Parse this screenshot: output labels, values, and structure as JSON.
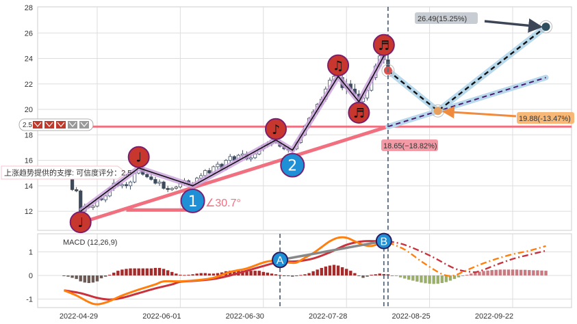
{
  "colors": {
    "up_candle": "#ffffff",
    "candle_edge": "#3d4a5c",
    "down_candle": "#3d4a5c",
    "zigzag": "#111111",
    "zigzag_halo": "#c9a0dc",
    "pivot_marker": "#c8372d",
    "pivot_edge": "#7a1f6e",
    "support_marker": "#1f8fd6",
    "support_line": "#f07080",
    "projection_halo": "#b8d8ec",
    "dif": "#ff7f0e",
    "dea": "#c8323c",
    "hist_pos": "#a52a2a",
    "hist_neg": "#6d5a55",
    "hist_proj_neg": "#9ab06a",
    "hist_proj_pos": "#c97a80",
    "gray_link": "#888888",
    "vline": "#5a6a7a"
  },
  "legend": {
    "score": "2.5",
    "icons": [
      "red",
      "red",
      "red",
      "gray",
      "gray"
    ]
  },
  "support_label": "上涨趋势提供的支撑: 可信度评分：2.5",
  "angle_label": "∠30.7°",
  "annotations": {
    "target_up": "26.49(15.25%)",
    "target_mid": "19.88(-13.47%)",
    "support_level": "18.65(−18.82%)"
  },
  "chart_data": [
    {
      "type": "candlestick",
      "ylim": [
        11,
        28
      ],
      "yticks": [
        12,
        14,
        16,
        18,
        20,
        22,
        24,
        26,
        28
      ],
      "grid": true,
      "xticks": [
        "2022-04-29",
        "2022-06-01",
        "2022-06-30",
        "2022-07-28",
        "2022-08-25",
        "2022-09-22"
      ],
      "dates": [
        "2022-04-19",
        "2022-04-20",
        "2022-04-21",
        "2022-04-22",
        "2022-04-25",
        "2022-04-26",
        "2022-04-27",
        "2022-04-28",
        "2022-04-29",
        "2022-05-05",
        "2022-05-06",
        "2022-05-09",
        "2022-05-10",
        "2022-05-11",
        "2022-05-12",
        "2022-05-13",
        "2022-05-16",
        "2022-05-17",
        "2022-05-18",
        "2022-05-19",
        "2022-05-20",
        "2022-05-23",
        "2022-05-24",
        "2022-05-25",
        "2022-05-26",
        "2022-05-27",
        "2022-05-30",
        "2022-05-31",
        "2022-06-01",
        "2022-06-02",
        "2022-06-06",
        "2022-06-07",
        "2022-06-08",
        "2022-06-09",
        "2022-06-10",
        "2022-06-13",
        "2022-06-14",
        "2022-06-15",
        "2022-06-16",
        "2022-06-17",
        "2022-06-20",
        "2022-06-21",
        "2022-06-22",
        "2022-06-23",
        "2022-06-24",
        "2022-06-27",
        "2022-06-28",
        "2022-06-29",
        "2022-06-30",
        "2022-07-01",
        "2022-07-04",
        "2022-07-05",
        "2022-07-06",
        "2022-07-07",
        "2022-07-08",
        "2022-07-11",
        "2022-07-12",
        "2022-07-13",
        "2022-07-14",
        "2022-07-15",
        "2022-07-18",
        "2022-07-19",
        "2022-07-20",
        "2022-07-21",
        "2022-07-22",
        "2022-07-25",
        "2022-07-26",
        "2022-07-27",
        "2022-07-28",
        "2022-07-29",
        "2022-08-01",
        "2022-08-02",
        "2022-08-03",
        "2022-08-04",
        "2022-08-05",
        "2022-08-08",
        "2022-08-09",
        "2022-08-10",
        "2022-08-11",
        "2022-08-12",
        "2022-08-15",
        "2022-08-16",
        "2022-08-17",
        "2022-08-18",
        "2022-08-19",
        "2022-08-22",
        "2022-08-23",
        "2022-08-24",
        "2022-08-25",
        "2022-08-26",
        "2022-08-29",
        "2022-08-30",
        "2022-08-31",
        "2022-09-01",
        "2022-09-02",
        "2022-09-05",
        "2022-09-06",
        "2022-09-07",
        "2022-09-08",
        "2022-09-09",
        "2022-09-12",
        "2022-09-13",
        "2022-09-14",
        "2022-09-15",
        "2022-09-16",
        "2022-09-19",
        "2022-09-20",
        "2022-09-21",
        "2022-09-22",
        "2022-09-23",
        "2022-09-26",
        "2022-09-27",
        "2022-09-28",
        "2022-09-29",
        "2022-09-30",
        "2022-10-03",
        "2022-10-04"
      ],
      "ohlc": [
        [
          14.8,
          15.4,
          14.5,
          14.7
        ],
        [
          14.7,
          14.9,
          14.5,
          14.6
        ],
        [
          14.6,
          14.7,
          13.6,
          13.7
        ],
        [
          13.7,
          13.9,
          13.5,
          13.6
        ],
        [
          13.6,
          13.7,
          11.4,
          12.0
        ],
        [
          12.0,
          12.6,
          11.9,
          12.4
        ],
        [
          12.4,
          12.6,
          12.2,
          12.3
        ],
        [
          12.3,
          12.5,
          12.1,
          12.4
        ],
        [
          12.4,
          13.1,
          12.3,
          13.0
        ],
        [
          13.0,
          13.2,
          12.8,
          12.9
        ],
        [
          12.9,
          13.3,
          12.7,
          13.2
        ],
        [
          13.2,
          13.9,
          13.1,
          13.8
        ],
        [
          13.8,
          14.5,
          13.6,
          14.2
        ],
        [
          14.2,
          14.4,
          13.9,
          14.0
        ],
        [
          14.0,
          14.2,
          13.8,
          14.1
        ],
        [
          14.1,
          14.3,
          13.8,
          14.0
        ],
        [
          14.0,
          14.4,
          13.7,
          14.3
        ],
        [
          14.3,
          15.1,
          14.2,
          15.0
        ],
        [
          15.0,
          16.0,
          14.9,
          15.4
        ],
        [
          15.4,
          15.6,
          14.8,
          14.9
        ],
        [
          14.9,
          15.1,
          14.6,
          14.7
        ],
        [
          14.7,
          15.0,
          14.4,
          14.5
        ],
        [
          14.5,
          14.7,
          14.1,
          14.2
        ],
        [
          14.2,
          14.5,
          14.0,
          14.3
        ],
        [
          14.3,
          14.4,
          13.7,
          13.8
        ],
        [
          13.8,
          14.0,
          13.5,
          13.7
        ],
        [
          13.7,
          13.9,
          13.6,
          13.8
        ],
        [
          13.8,
          14.0,
          13.7,
          13.9
        ],
        [
          13.9,
          14.3,
          13.8,
          14.2
        ],
        [
          14.2,
          14.6,
          14.0,
          14.4
        ],
        [
          14.4,
          14.5,
          14.0,
          14.1
        ],
        [
          14.1,
          14.3,
          13.9,
          14.0
        ],
        [
          14.0,
          14.7,
          13.9,
          14.6
        ],
        [
          14.6,
          15.0,
          14.4,
          14.8
        ],
        [
          14.8,
          15.3,
          14.6,
          15.2
        ],
        [
          15.2,
          15.4,
          14.9,
          15.0
        ],
        [
          15.0,
          15.6,
          14.9,
          15.5
        ],
        [
          15.5,
          15.9,
          15.3,
          15.7
        ],
        [
          15.7,
          15.8,
          15.2,
          15.3
        ],
        [
          15.3,
          16.1,
          15.2,
          16.0
        ],
        [
          16.0,
          16.5,
          15.8,
          16.3
        ],
        [
          16.3,
          16.4,
          15.9,
          16.0
        ],
        [
          16.0,
          16.5,
          15.9,
          16.4
        ],
        [
          16.4,
          16.8,
          16.2,
          16.5
        ],
        [
          16.5,
          16.7,
          16.0,
          16.1
        ],
        [
          16.1,
          16.4,
          15.9,
          16.2
        ],
        [
          16.2,
          16.6,
          16.1,
          16.5
        ],
        [
          16.5,
          17.0,
          16.4,
          16.9
        ],
        [
          16.9,
          17.3,
          16.7,
          17.2
        ],
        [
          17.2,
          17.5,
          17.0,
          17.3
        ],
        [
          17.3,
          17.8,
          17.1,
          17.6
        ],
        [
          17.6,
          17.9,
          17.3,
          17.4
        ],
        [
          17.4,
          17.6,
          17.0,
          17.1
        ],
        [
          17.1,
          17.3,
          16.8,
          16.9
        ],
        [
          16.9,
          17.1,
          16.6,
          16.8
        ],
        [
          16.8,
          17.0,
          16.6,
          16.9
        ],
        [
          16.9,
          17.5,
          16.8,
          17.4
        ],
        [
          17.4,
          18.1,
          17.3,
          18.0
        ],
        [
          18.0,
          18.8,
          17.9,
          18.7
        ],
        [
          18.7,
          19.4,
          18.5,
          19.3
        ],
        [
          19.3,
          20.0,
          19.1,
          19.8
        ],
        [
          19.8,
          20.5,
          19.6,
          20.4
        ],
        [
          20.4,
          21.0,
          20.2,
          20.8
        ],
        [
          20.8,
          21.8,
          20.6,
          21.6
        ],
        [
          21.6,
          22.5,
          21.4,
          22.3
        ],
        [
          22.3,
          23.0,
          22.0,
          22.6
        ],
        [
          22.6,
          23.3,
          22.3,
          22.5
        ],
        [
          22.5,
          22.8,
          21.5,
          21.7
        ],
        [
          21.7,
          22.4,
          21.2,
          22.0
        ],
        [
          22.0,
          22.3,
          21.4,
          21.6
        ],
        [
          21.6,
          22.0,
          21.0,
          21.2
        ],
        [
          21.2,
          21.5,
          20.4,
          20.6
        ],
        [
          20.6,
          21.0,
          20.2,
          20.9
        ],
        [
          20.9,
          21.6,
          20.7,
          21.5
        ],
        [
          21.5,
          22.6,
          21.4,
          22.5
        ],
        [
          22.5,
          23.6,
          22.3,
          23.4
        ],
        [
          23.4,
          24.4,
          23.2,
          24.2
        ],
        [
          24.2,
          24.6,
          23.6,
          23.9
        ],
        [
          23.9,
          24.2,
          23.0,
          23.1
        ]
      ],
      "zigzag": [
        [
          "2022-04-25",
          12.0,
          "♩",
          "low"
        ],
        [
          "2022-05-18",
          15.4,
          "♩",
          "high"
        ],
        [
          "2022-06-07",
          14.0,
          "1",
          "support"
        ],
        [
          "2022-07-05",
          17.6,
          "♪",
          "high"
        ],
        [
          "2022-07-11",
          16.8,
          "2",
          "support"
        ],
        [
          "2022-07-26",
          22.6,
          "♫",
          "high"
        ],
        [
          "2022-08-02",
          20.6,
          "♬",
          "low"
        ],
        [
          "2022-08-10",
          24.2,
          "♬",
          "high"
        ]
      ],
      "support_trend": [
        [
          "2022-04-25",
          11.1
        ],
        [
          "2022-08-11",
          18.65
        ]
      ],
      "support_level": 18.65,
      "angle_base": {
        "from": "2022-05-13",
        "to": "2022-06-02",
        "value": 12.1
      },
      "projection": [
        [
          "2022-08-11",
          23.05
        ],
        [
          "2022-08-29",
          19.88
        ],
        [
          "2022-10-04",
          26.49
        ]
      ],
      "projection_trend": [
        [
          "2022-08-11",
          18.65
        ],
        [
          "2022-10-04",
          22.5
        ]
      ],
      "vline": "2022-08-11"
    },
    {
      "type": "macd",
      "title": "MACD (12,26,9)",
      "ylim": [
        -1.35,
        1.8
      ],
      "yticks": [
        -1,
        0,
        1
      ],
      "last_actual": "2022-08-11",
      "dif": [
        [
          "2022-04-19",
          -0.63
        ],
        [
          "2022-04-22",
          -0.85
        ],
        [
          "2022-04-28",
          -1.2
        ],
        [
          "2022-05-06",
          -1.15
        ],
        [
          "2022-05-12",
          -0.85
        ],
        [
          "2022-05-18",
          -0.6
        ],
        [
          "2022-05-24",
          -0.38
        ],
        [
          "2022-05-26",
          -0.25
        ],
        [
          "2022-06-01",
          -0.25
        ],
        [
          "2022-06-08",
          -0.2
        ],
        [
          "2022-06-14",
          -0.1
        ],
        [
          "2022-06-20",
          0.15
        ],
        [
          "2022-06-24",
          0.3
        ],
        [
          "2022-06-30",
          0.55
        ],
        [
          "2022-07-04",
          0.62
        ],
        [
          "2022-07-06",
          0.62
        ],
        [
          "2022-07-08",
          0.55
        ],
        [
          "2022-07-12",
          0.55
        ],
        [
          "2022-07-14",
          0.75
        ],
        [
          "2022-07-18",
          0.95
        ],
        [
          "2022-07-20",
          1.2
        ],
        [
          "2022-07-22",
          1.45
        ],
        [
          "2022-07-26",
          1.6
        ],
        [
          "2022-07-28",
          1.6
        ],
        [
          "2022-08-01",
          1.45
        ],
        [
          "2022-08-03",
          1.3
        ],
        [
          "2022-08-05",
          1.25
        ],
        [
          "2022-08-09",
          1.35
        ],
        [
          "2022-08-11",
          1.4
        ],
        [
          "2022-08-17",
          1.1
        ],
        [
          "2022-08-23",
          0.6
        ],
        [
          "2022-08-29",
          0.15
        ],
        [
          "2022-08-31",
          0.0
        ],
        [
          "2022-09-02",
          0.0
        ],
        [
          "2022-09-06",
          0.15
        ],
        [
          "2022-09-12",
          0.45
        ],
        [
          "2022-09-16",
          0.7
        ],
        [
          "2022-09-22",
          0.9
        ],
        [
          "2022-09-28",
          1.05
        ],
        [
          "2022-10-04",
          1.25
        ]
      ],
      "dea": [
        [
          "2022-04-19",
          -0.63
        ],
        [
          "2022-04-25",
          -0.75
        ],
        [
          "2022-04-29",
          -0.95
        ],
        [
          "2022-05-09",
          -1.02
        ],
        [
          "2022-05-12",
          -0.95
        ],
        [
          "2022-05-18",
          -0.75
        ],
        [
          "2022-05-24",
          -0.55
        ],
        [
          "2022-05-30",
          -0.38
        ],
        [
          "2022-06-01",
          -0.27
        ],
        [
          "2022-06-08",
          -0.22
        ],
        [
          "2022-06-14",
          -0.15
        ],
        [
          "2022-06-20",
          0.0
        ],
        [
          "2022-06-24",
          0.2
        ],
        [
          "2022-06-30",
          0.4
        ],
        [
          "2022-07-06",
          0.58
        ],
        [
          "2022-07-12",
          0.6
        ],
        [
          "2022-07-18",
          0.72
        ],
        [
          "2022-07-22",
          0.98
        ],
        [
          "2022-07-28",
          1.3
        ],
        [
          "2022-08-03",
          1.45
        ],
        [
          "2022-08-09",
          1.45
        ],
        [
          "2022-08-11",
          1.45
        ],
        [
          "2022-08-17",
          1.3
        ],
        [
          "2022-08-25",
          0.85
        ],
        [
          "2022-09-02",
          0.3
        ],
        [
          "2022-09-08",
          0.15
        ],
        [
          "2022-09-12",
          0.18
        ],
        [
          "2022-09-16",
          0.45
        ],
        [
          "2022-09-22",
          0.7
        ],
        [
          "2022-09-28",
          0.88
        ],
        [
          "2022-10-04",
          1.05
        ]
      ],
      "hist": [
        -0.02,
        -0.05,
        -0.1,
        -0.15,
        -0.25,
        -0.3,
        -0.32,
        -0.3,
        -0.25,
        -0.12,
        -0.05,
        0.03,
        0.12,
        0.2,
        0.25,
        0.28,
        0.3,
        0.3,
        0.3,
        0.3,
        0.3,
        0.3,
        0.32,
        0.32,
        0.28,
        0.22,
        0.15,
        0.08,
        0.03,
        0.02,
        0.03,
        0.05,
        0.08,
        0.1,
        0.1,
        0.08,
        0.08,
        0.1,
        0.13,
        0.18,
        0.2,
        0.2,
        0.22,
        0.2,
        0.2,
        0.2,
        0.2,
        0.2,
        0.15,
        0.12,
        0.08,
        0.05,
        0.02,
        0.0,
        -0.03,
        -0.05,
        -0.03,
        0.02,
        0.05,
        0.1,
        0.18,
        0.25,
        0.32,
        0.38,
        0.42,
        0.45,
        0.42,
        0.35,
        0.28,
        0.2,
        0.1,
        -0.02,
        -0.1,
        -0.05,
        0.03,
        0.05,
        0.08,
        0.06,
        0.05,
        0.0,
        -0.03,
        -0.08,
        -0.13,
        -0.18,
        -0.22,
        -0.26,
        -0.3,
        -0.33,
        -0.35,
        -0.36,
        -0.35,
        -0.32,
        -0.28,
        -0.22,
        -0.15,
        -0.08,
        -0.02,
        0.03,
        0.08,
        0.12,
        0.16,
        0.19,
        0.21,
        0.23,
        0.24,
        0.25,
        0.25,
        0.25,
        0.25,
        0.25,
        0.24,
        0.24,
        0.23,
        0.22,
        0.22,
        0.21,
        0.2
      ],
      "markers": [
        [
          "A",
          "2022-07-06",
          0.66
        ],
        [
          "B",
          "2022-08-10",
          1.46
        ]
      ],
      "vlines": [
        "2022-07-06",
        "2022-08-10",
        "2022-08-11"
      ]
    }
  ]
}
